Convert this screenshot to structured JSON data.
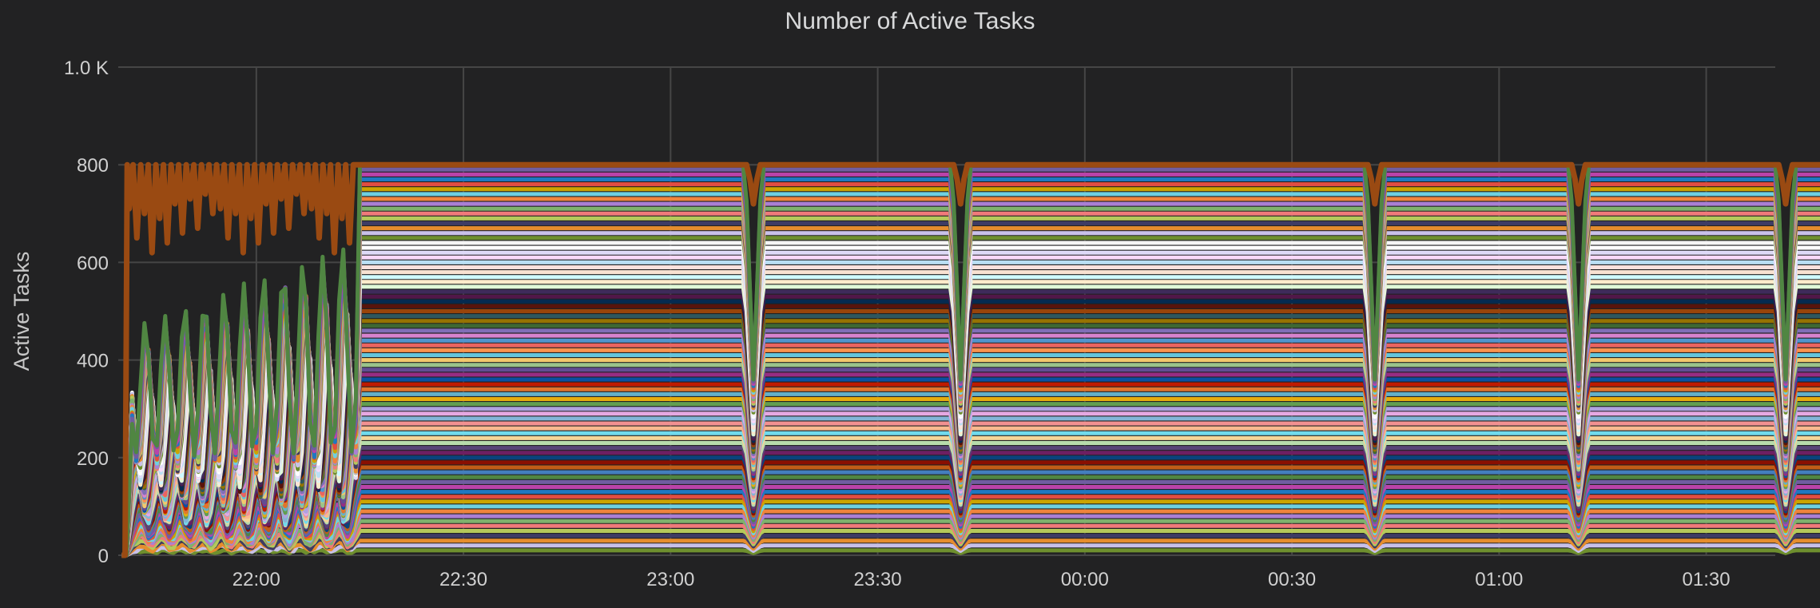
{
  "chart_data": {
    "type": "line",
    "title": "Number of Active Tasks",
    "xlabel": "",
    "ylabel": "Active Tasks",
    "y_ticks": [
      "0",
      "200",
      "400",
      "600",
      "800",
      "1.0 K"
    ],
    "y_tick_values": [
      0,
      200,
      400,
      600,
      800,
      1000
    ],
    "ylim": [
      0,
      1000
    ],
    "x_ticks": [
      "22:00",
      "22:30",
      "23:00",
      "23:30",
      "00:00",
      "00:30",
      "01:00",
      "01:30"
    ],
    "xlim": [
      "21:40",
      "01:40"
    ],
    "x_tick_positions_min": [
      20,
      50,
      80,
      110,
      140,
      170,
      200,
      230
    ],
    "grid": true,
    "legend": false,
    "num_series": 80,
    "series_spacing": 10,
    "ramp_start_min": 2,
    "ramp_end_min": 2.5,
    "steady_start_min": 35,
    "steady_end_min": 255,
    "tail_end_min": 258,
    "dip_centers_min": [
      92,
      122,
      182,
      211.5,
      241.5
    ],
    "top_series_oscillation_min_values": [
      710,
      650,
      700,
      620,
      690,
      640,
      720,
      660,
      730,
      670,
      740,
      700
    ],
    "top_series_color": "#9a4a12",
    "palette": [
      "#6e8f2e",
      "#c8c0e8",
      "#e58d2e",
      "#3e3c64",
      "#b5c95a",
      "#f07a7a",
      "#7eb26d",
      "#aa7fd4",
      "#ef843c",
      "#6ed0e0",
      "#cca300",
      "#e24d42",
      "#1f78c1",
      "#ba43a9",
      "#705da0",
      "#508642",
      "#447ebc",
      "#c15c17",
      "#890f02",
      "#0a437c",
      "#6d1f62",
      "#584477",
      "#b7dbab",
      "#f4d598",
      "#70dbed",
      "#f9ba8f",
      "#f29191",
      "#82b5d8",
      "#e5a8e2",
      "#aea2e0",
      "#629e51",
      "#e5ac0e",
      "#64b0c8",
      "#e0752d",
      "#bf1b00",
      "#0a50a1",
      "#962d82",
      "#614d93",
      "#9ac48a",
      "#f2c96d",
      "#65c5db",
      "#f9934e",
      "#ea6460",
      "#5195ce",
      "#d683ce",
      "#806eb7",
      "#3f6833",
      "#967302",
      "#2f575e",
      "#99440a",
      "#58140c",
      "#052b51",
      "#511749",
      "#3f2b5b",
      "#e0f9d7",
      "#fceaca",
      "#cffaff",
      "#f9e2d2",
      "#fce2de",
      "#badff4",
      "#f9d9f9",
      "#dedaf7",
      "#ffffff",
      "#f5f5f5"
    ]
  }
}
